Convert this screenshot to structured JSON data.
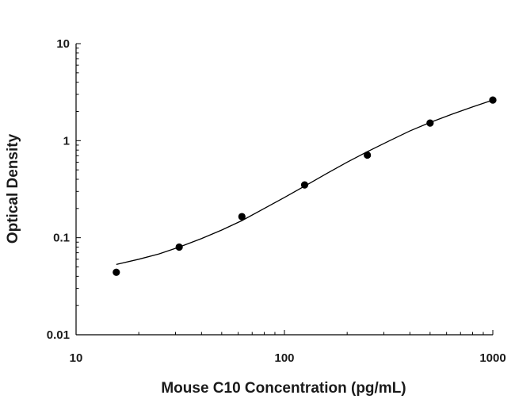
{
  "chart_data": {
    "type": "scatter",
    "title": "",
    "xlabel": "Mouse C10 Concentration (pg/mL)",
    "ylabel": "Optical Density",
    "x_scale": "log",
    "y_scale": "log",
    "xlim": [
      10,
      1000
    ],
    "ylim": [
      0.01,
      10
    ],
    "x_ticks": [
      "10",
      "100",
      "1000"
    ],
    "y_ticks": [
      "10",
      "1",
      "0.1",
      "0.01"
    ],
    "grid": false,
    "legend": "none",
    "colors": {
      "points": "#000000",
      "curve": "#000000",
      "axis": "#000000"
    },
    "series": [
      {
        "kind": "points",
        "x": [
          15.6,
          31.25,
          62.5,
          125,
          250,
          500,
          1000
        ],
        "y": [
          0.044,
          0.08,
          0.165,
          0.35,
          0.71,
          1.52,
          2.62
        ]
      },
      {
        "kind": "fit-curve",
        "x": [
          15.6,
          20,
          25,
          31.25,
          40,
          50,
          62.5,
          80,
          100,
          125,
          160,
          200,
          250,
          320,
          400,
          500,
          640,
          800,
          1000
        ],
        "y": [
          0.053,
          0.06,
          0.068,
          0.08,
          0.098,
          0.12,
          0.15,
          0.2,
          0.26,
          0.34,
          0.46,
          0.6,
          0.77,
          1.0,
          1.26,
          1.54,
          1.88,
          2.23,
          2.62
        ]
      }
    ]
  }
}
